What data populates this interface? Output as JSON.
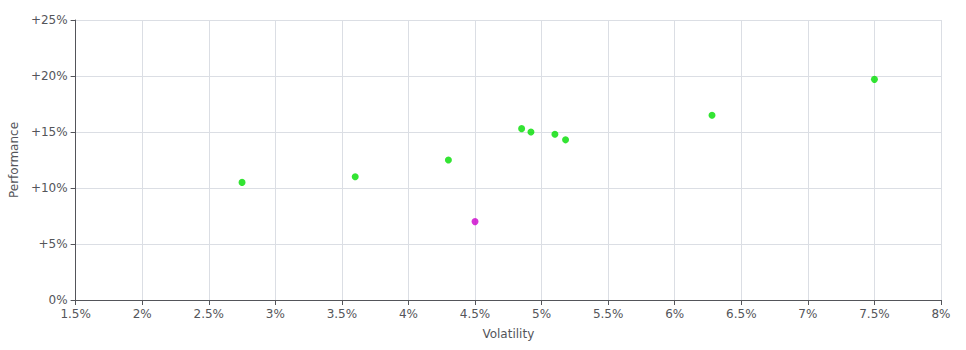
{
  "chart_data": {
    "type": "scatter",
    "xlabel": "Volatility",
    "ylabel": "Performance",
    "series": [
      {
        "color": "#00dd00",
        "values": [
          [
            2.75,
            10.5
          ],
          [
            3.6,
            11.0
          ],
          [
            4.3,
            12.5
          ],
          [
            4.85,
            15.3
          ],
          [
            4.92,
            15.0
          ],
          [
            5.1,
            14.8
          ],
          [
            5.18,
            14.3
          ],
          [
            6.28,
            16.5
          ],
          [
            7.5,
            19.7
          ]
        ]
      },
      {
        "color": "#cc00cc",
        "values": [
          [
            4.5,
            7.0
          ]
        ]
      }
    ],
    "xlim": [
      1.5,
      8.0
    ],
    "xticks": [
      {
        "value": 1.5,
        "label": "1.5%"
      },
      {
        "value": 2.0,
        "label": "2%"
      },
      {
        "value": 2.5,
        "label": "2.5%"
      },
      {
        "value": 3.0,
        "label": "3%"
      },
      {
        "value": 3.5,
        "label": "3.5%"
      },
      {
        "value": 4.0,
        "label": "4%"
      },
      {
        "value": 4.5,
        "label": "4.5%"
      },
      {
        "value": 5.0,
        "label": "5%"
      },
      {
        "value": 5.5,
        "label": "5.5%"
      },
      {
        "value": 6.0,
        "label": "6%"
      },
      {
        "value": 6.5,
        "label": "6.5%"
      },
      {
        "value": 7.0,
        "label": "7%"
      },
      {
        "value": 7.5,
        "label": "7.5%"
      },
      {
        "value": 8.0,
        "label": "8%"
      }
    ],
    "ylim": [
      0,
      25
    ],
    "yticks": [
      {
        "value": 0,
        "label": "0%"
      },
      {
        "value": 5,
        "label": "+5%"
      },
      {
        "value": 10,
        "label": "+10%"
      },
      {
        "value": 15,
        "label": "+15%"
      },
      {
        "value": 20,
        "label": "+20%"
      },
      {
        "value": 25,
        "label": "+25%"
      }
    ],
    "grid": true
  }
}
